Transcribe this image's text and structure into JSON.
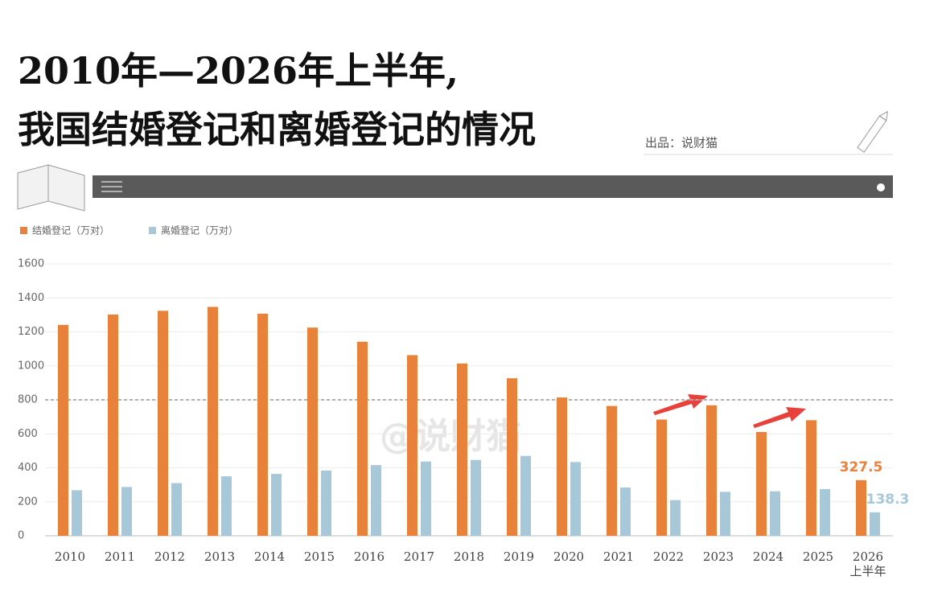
{
  "chart_data": {
    "type": "bar",
    "title": "2010年—2026年上半年,",
    "subtitle": "我国结婚登记和离婚登记的情况",
    "source": "出品：说财猫",
    "watermark": "@说财猫",
    "categories": [
      "2010",
      "2011",
      "2012",
      "2013",
      "2014",
      "2015",
      "2016",
      "2017",
      "2018",
      "2019",
      "2020",
      "2021",
      "2022",
      "2023",
      "2024",
      "2025",
      "2026\n上半年"
    ],
    "series": [
      {
        "name": "结婚登记（万对）",
        "color": "#e8823a",
        "values": [
          1241,
          1302,
          1324,
          1347,
          1307,
          1225,
          1142,
          1063,
          1014,
          927,
          814,
          764,
          684,
          768,
          611,
          680,
          327.5
        ],
        "value_labels": [
          null,
          null,
          null,
          null,
          null,
          null,
          null,
          null,
          null,
          null,
          null,
          null,
          null,
          null,
          null,
          null,
          "327.5"
        ]
      },
      {
        "name": "离婚登记（万对）",
        "color": "#a6c8d8",
        "values": [
          268,
          287,
          310,
          350,
          364,
          384,
          416,
          437,
          446,
          470,
          434,
          284,
          210,
          259,
          262,
          275,
          138.3
        ],
        "value_labels": [
          null,
          null,
          null,
          null,
          null,
          null,
          null,
          null,
          null,
          null,
          null,
          null,
          null,
          null,
          null,
          null,
          "138.3"
        ]
      }
    ],
    "ylim": [
      0,
      1600
    ],
    "yticks": [
      0,
      200,
      400,
      600,
      800,
      1000,
      1200,
      1400,
      1600
    ],
    "reference_line": 800,
    "grid": true,
    "legend": "top-left"
  }
}
